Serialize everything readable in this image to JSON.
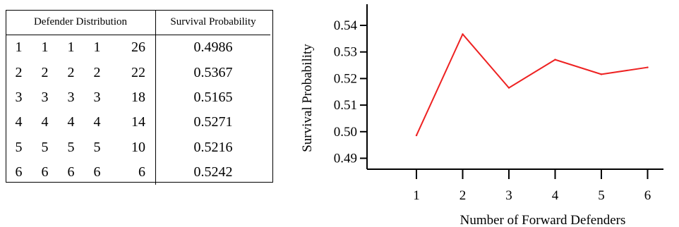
{
  "table": {
    "headers": {
      "distribution": "Defender Distribution",
      "probability": "Survival Probability"
    },
    "rows": [
      {
        "d": [
          "1",
          "1",
          "1",
          "1",
          "26"
        ],
        "p": "0.4986"
      },
      {
        "d": [
          "2",
          "2",
          "2",
          "2",
          "22"
        ],
        "p": "0.5367"
      },
      {
        "d": [
          "3",
          "3",
          "3",
          "3",
          "18"
        ],
        "p": "0.5165"
      },
      {
        "d": [
          "4",
          "4",
          "4",
          "4",
          "14"
        ],
        "p": "0.5271"
      },
      {
        "d": [
          "5",
          "5",
          "5",
          "5",
          "10"
        ],
        "p": "0.5216"
      },
      {
        "d": [
          "6",
          "6",
          "6",
          "6",
          "6"
        ],
        "p": "0.5242"
      }
    ]
  },
  "chart_data": {
    "type": "line",
    "x": [
      1,
      2,
      3,
      4,
      5,
      6
    ],
    "values": [
      0.4986,
      0.5367,
      0.5165,
      0.5271,
      0.5216,
      0.5242
    ],
    "xlabel": "Number of Forward Defenders",
    "ylabel": "Survival Probability",
    "ylim": [
      0.485,
      0.545
    ],
    "yticks": [
      "0.49",
      "0.50",
      "0.51",
      "0.52",
      "0.53",
      "0.54"
    ],
    "xticks": [
      "1",
      "2",
      "3",
      "4",
      "5",
      "6"
    ],
    "line_color": "#ee2222",
    "grid": false,
    "legend": "none"
  }
}
